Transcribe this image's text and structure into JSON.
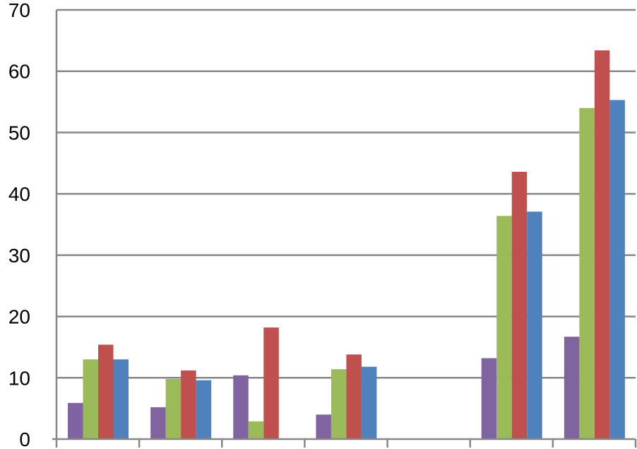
{
  "chart_data": {
    "type": "bar",
    "title": "",
    "xlabel": "",
    "ylabel": "",
    "categories": [
      "",
      "",
      "",
      "",
      "",
      "",
      ""
    ],
    "ylim": [
      0,
      70
    ],
    "yticks": [
      "0",
      "10",
      "20",
      "30",
      "40",
      "50",
      "60",
      "70"
    ],
    "grid": true,
    "legend": "none",
    "series": [
      {
        "color": "#8064A2",
        "values": [
          5.9,
          5.2,
          10.4,
          4.0,
          0,
          13.2,
          16.7
        ]
      },
      {
        "color": "#9BBB59",
        "values": [
          13.0,
          9.8,
          2.9,
          11.4,
          0,
          36.4,
          54.0
        ]
      },
      {
        "color": "#C0504D",
        "values": [
          15.4,
          11.2,
          18.2,
          13.8,
          0,
          43.6,
          63.4
        ]
      },
      {
        "color": "#4F81BD",
        "values": [
          13.0,
          9.6,
          0,
          11.8,
          0,
          37.1,
          55.3
        ]
      }
    ]
  }
}
